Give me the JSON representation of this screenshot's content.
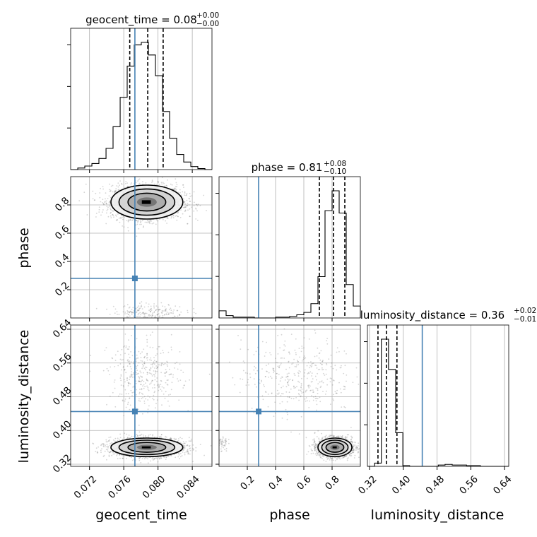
{
  "chart_data": {
    "type": "corner",
    "parameters": [
      "geocent_time",
      "phase",
      "luminosity_distance"
    ],
    "truths": [
      0.0773,
      0.28,
      0.445
    ],
    "colors": {
      "truth": "#4682b4",
      "hist": "#000000",
      "grid": "#b0b0b0",
      "points": "#555555"
    },
    "titles": [
      {
        "name": "geocent_time",
        "value": "0.08",
        "plus": "+0.00",
        "minus": "−0.00"
      },
      {
        "name": "phase",
        "value": "0.81",
        "plus": "+0.08",
        "minus": "−0.10"
      },
      {
        "name": "luminosity_distance",
        "value": "0.36",
        "plus": "+0.02",
        "minus": "−0.01"
      }
    ],
    "axes": {
      "geocent_time": {
        "range": [
          0.0698,
          0.0863
        ],
        "ticks": [
          0.072,
          0.076,
          0.08,
          0.084
        ],
        "tick_labels": [
          "0.072",
          "0.076",
          "0.080",
          "0.084"
        ]
      },
      "phase": {
        "range": [
          0.0,
          1.0
        ],
        "ticks": [
          0.2,
          0.4,
          0.6,
          0.8
        ],
        "tick_labels": [
          "0.2",
          "0.4",
          "0.6",
          "0.8"
        ]
      },
      "luminosity_distance": {
        "range": [
          0.315,
          0.65
        ],
        "ticks": [
          0.32,
          0.4,
          0.48,
          0.56,
          0.64
        ],
        "tick_labels": [
          "0.32",
          "0.40",
          "0.48",
          "0.56",
          "0.64"
        ]
      }
    },
    "histograms": [
      {
        "param": "geocent_time",
        "bin_edges": [
          0.0698,
          0.07063,
          0.07145,
          0.07228,
          0.0731,
          0.07393,
          0.07475,
          0.07558,
          0.0764,
          0.07723,
          0.07805,
          0.07888,
          0.0797,
          0.08053,
          0.08135,
          0.08218,
          0.083,
          0.08383,
          0.08465,
          0.08548,
          0.0863
        ],
        "counts": [
          0,
          3,
          7,
          12,
          22,
          42,
          85,
          143,
          205,
          247,
          252,
          227,
          186,
          115,
          62,
          30,
          15,
          6,
          2,
          0
        ],
        "quantiles": [
          0.0767,
          0.0788,
          0.0806
        ]
      },
      {
        "param": "phase",
        "bin_edges": [
          0.0,
          0.05,
          0.1,
          0.15,
          0.2,
          0.25,
          0.3,
          0.35,
          0.4,
          0.45,
          0.5,
          0.55,
          0.6,
          0.65,
          0.7,
          0.75,
          0.8,
          0.85,
          0.9,
          0.95,
          1.0
        ],
        "counts": [
          9,
          3,
          1,
          1,
          1,
          0,
          0,
          0,
          1,
          1,
          2,
          4,
          7,
          18,
          52,
          135,
          160,
          132,
          42,
          15
        ],
        "quantiles": [
          0.71,
          0.81,
          0.89
        ]
      },
      {
        "param": "luminosity_distance",
        "bin_edges": [
          0.315,
          0.332,
          0.348,
          0.365,
          0.382,
          0.399,
          0.415,
          0.432,
          0.449,
          0.466,
          0.483,
          0.499,
          0.516,
          0.533,
          0.55,
          0.566,
          0.583,
          0.6,
          0.617,
          0.633,
          0.65
        ],
        "counts": [
          0,
          5,
          197,
          150,
          52,
          1,
          0,
          0,
          0,
          0,
          2,
          3,
          2,
          2,
          1,
          1,
          0,
          0,
          0,
          0
        ],
        "quantiles": [
          0.34,
          0.36,
          0.385
        ]
      }
    ],
    "posterior_2d": [
      {
        "x": "geocent_time",
        "y": "phase",
        "clusters": [
          {
            "mean": [
              0.0787,
              0.82
            ],
            "std": [
              0.0021,
              0.06
            ],
            "weight": 0.92
          },
          {
            "mean": [
              0.079,
              0.04
            ],
            "std": [
              0.0021,
              0.03
            ],
            "weight": 0.08
          }
        ]
      },
      {
        "x": "geocent_time",
        "y": "luminosity_distance",
        "clusters": [
          {
            "mean": [
              0.0787,
              0.36
            ],
            "std": [
              0.0021,
              0.011
            ],
            "weight": 0.85
          },
          {
            "mean": [
              0.0785,
              0.53
            ],
            "std": [
              0.0021,
              0.04
            ],
            "weight": 0.15
          }
        ]
      },
      {
        "x": "phase",
        "y": "luminosity_distance",
        "clusters": [
          {
            "mean": [
              0.82,
              0.36
            ],
            "std": [
              0.06,
              0.011
            ],
            "weight": 0.85
          },
          {
            "mean": [
              0.55,
              0.53
            ],
            "std": [
              0.2,
              0.045
            ],
            "weight": 0.15
          },
          {
            "mean": [
              0.02,
              0.37
            ],
            "std": [
              0.02,
              0.01
            ],
            "weight": 0.02
          }
        ]
      }
    ]
  }
}
